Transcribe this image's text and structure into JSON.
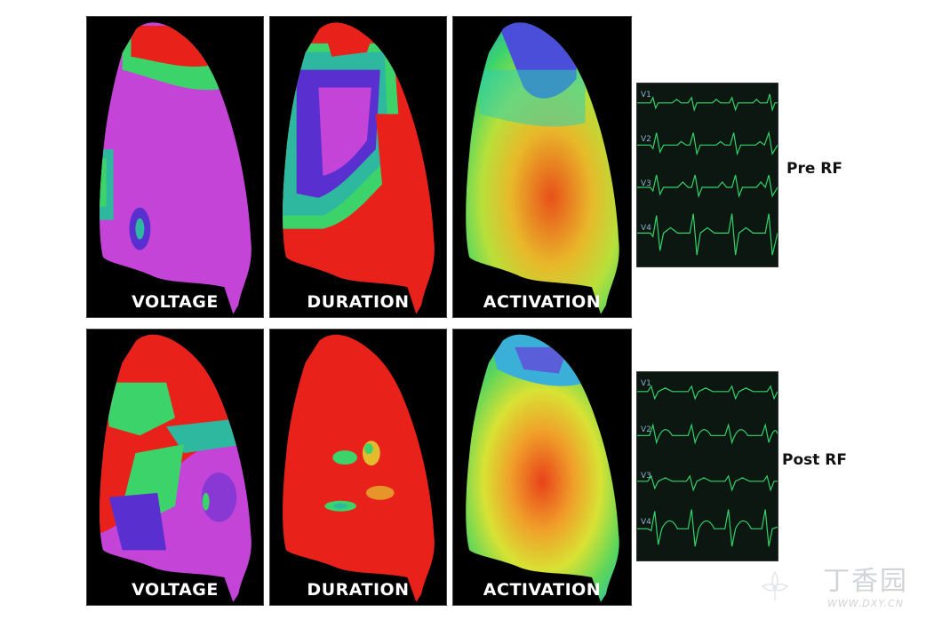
{
  "figure": {
    "rows": [
      {
        "condition_label": "Pre RF",
        "panels": [
          {
            "label": "VOLTAGE"
          },
          {
            "label": "DURATION"
          },
          {
            "label": "ACTIVATION"
          }
        ],
        "ecg_leads": [
          "V1",
          "V2",
          "V3",
          "V4"
        ]
      },
      {
        "condition_label": "Post RF",
        "panels": [
          {
            "label": "VOLTAGE"
          },
          {
            "label": "DURATION"
          },
          {
            "label": "ACTIVATION"
          }
        ],
        "ecg_leads": [
          "V1",
          "V2",
          "V3",
          "V4"
        ]
      }
    ]
  },
  "watermark": {
    "text_cn": "丁香园",
    "url": "WWW.DXY.CN"
  },
  "colors": {
    "map_red": "#e8221a",
    "map_purple": "#c444d8",
    "map_blue": "#5a2fd0",
    "map_green": "#3cd46a",
    "map_yellow": "#e2e234",
    "ecg_trace": "#33d46a",
    "ecg_bg": "#0c1712"
  }
}
